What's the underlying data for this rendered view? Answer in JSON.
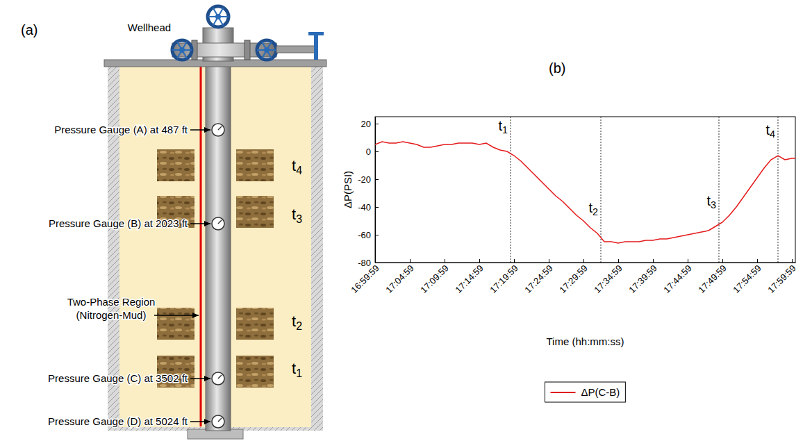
{
  "diagram": {
    "panel_label": "(a)",
    "wellhead": "Wellhead",
    "gauges": [
      {
        "label": "Pressure Gauge (A) at 487 ft"
      },
      {
        "label": "Pressure Gauge (B) at 2023 ft"
      },
      {
        "label": "Pressure Gauge (C) at 3502 ft"
      },
      {
        "label": "Pressure Gauge (D) at 5024 ft"
      }
    ],
    "two_phase_region": [
      "Two-Phase Region",
      "(Nitrogen-Mud)"
    ],
    "zones": [
      "t4",
      "t3",
      "t2",
      "t1"
    ]
  },
  "chart_data": {
    "type": "line",
    "panel_label": "(b)",
    "x_label": "Time (hh:mm:ss)",
    "y_label": "ΔP(PSI)",
    "x": [
      "16:59:59",
      "17:00:59",
      "17:01:59",
      "17:02:59",
      "17:03:59",
      "17:04:59",
      "17:05:59",
      "17:06:59",
      "17:07:59",
      "17:08:59",
      "17:09:59",
      "17:10:59",
      "17:11:59",
      "17:12:59",
      "17:13:59",
      "17:14:59",
      "17:15:59",
      "17:16:59",
      "17:17:59",
      "17:18:59",
      "17:19:59",
      "17:20:59",
      "17:21:59",
      "17:22:59",
      "17:23:59",
      "17:24:59",
      "17:25:59",
      "17:26:59",
      "17:27:59",
      "17:28:59",
      "17:29:59",
      "17:30:59",
      "17:31:59",
      "17:32:59",
      "17:33:59",
      "17:34:59",
      "17:35:59",
      "17:36:59",
      "17:37:59",
      "17:38:59",
      "17:39:59",
      "17:40:59",
      "17:41:59",
      "17:42:59",
      "17:43:59",
      "17:44:59",
      "17:45:59",
      "17:46:59",
      "17:47:59",
      "17:48:59",
      "17:49:59",
      "17:50:59",
      "17:51:59",
      "17:52:59",
      "17:53:59",
      "17:54:59",
      "17:55:59",
      "17:56:59",
      "17:57:59",
      "17:58:59",
      "17:59:59",
      "18:00:29"
    ],
    "series": [
      {
        "name": "ΔP(C-B)",
        "color": "#e41a1c",
        "values": [
          5,
          7,
          6,
          6,
          7,
          6,
          5,
          3,
          3,
          4,
          5,
          5,
          6,
          6,
          6,
          5,
          6,
          3,
          1,
          0,
          -3,
          -7,
          -12,
          -17,
          -22,
          -27,
          -32,
          -36,
          -41,
          -46,
          -50,
          -55,
          -59,
          -65,
          -65,
          -66,
          -65,
          -65,
          -65,
          -64,
          -64,
          -63,
          -63,
          -62,
          -61,
          -60,
          -59,
          -58,
          -57,
          -54,
          -51,
          -46,
          -40,
          -33,
          -26,
          -19,
          -12,
          -6,
          -3,
          -6,
          -5,
          -5
        ]
      }
    ],
    "xlim": [
      "16:59:59",
      "18:00:29"
    ],
    "xticks": [
      "16:59:59",
      "17:04:59",
      "17:09:59",
      "17:14:59",
      "17:19:59",
      "17:24:59",
      "17:29:59",
      "17:34:59",
      "17:39:59",
      "17:44:59",
      "17:49:59",
      "17:54:59",
      "17:59:59"
    ],
    "ylim": [
      -80,
      25
    ],
    "yticks": [
      20,
      0,
      -20,
      -40,
      -60,
      -80
    ],
    "markers": [
      {
        "label": "t1",
        "x": "17:19:29"
      },
      {
        "label": "t2",
        "x": "17:32:29"
      },
      {
        "label": "t3",
        "x": "17:49:29"
      },
      {
        "label": "t4",
        "x": "17:57:59"
      }
    ],
    "grid": false,
    "legend": "bottom"
  }
}
